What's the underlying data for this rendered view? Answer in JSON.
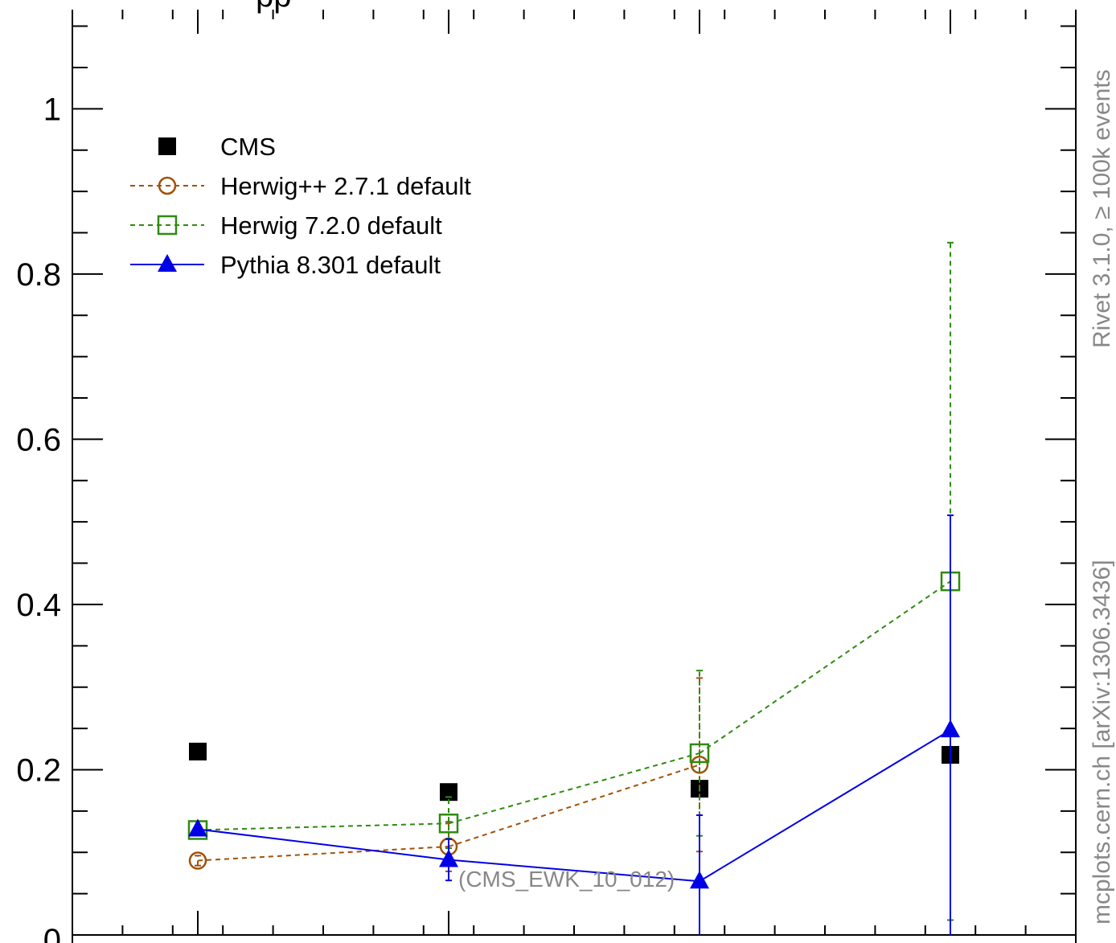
{
  "chart_data": {
    "type": "scatter",
    "title": "",
    "xlabel": "",
    "ylabel": "",
    "ylim": [
      0,
      1.12
    ],
    "xlim": [
      0.5,
      4.5
    ],
    "x": [
      1,
      2,
      3,
      4
    ],
    "y_ticks": [
      {
        "value": 0.2,
        "label": "0.2"
      },
      {
        "value": 0.4,
        "label": "0.4"
      },
      {
        "value": 0.6,
        "label": "0.6"
      },
      {
        "value": 0.8,
        "label": "0.8"
      },
      {
        "value": 1.0,
        "label": "1"
      }
    ],
    "bottom_tick_fragment": "0",
    "series": [
      {
        "name": "CMS",
        "color": "#000000",
        "marker": "filled-square",
        "line": "none",
        "values": [
          0.222,
          0.173,
          0.177,
          0.218
        ],
        "err_low": [
          0,
          0,
          0,
          0
        ],
        "err_high": [
          0,
          0,
          0,
          0
        ]
      },
      {
        "name": "Herwig++ 2.7.1 default",
        "color": "#a0520a",
        "marker": "open-circle",
        "line": "dashed",
        "values": [
          0.09,
          0.107,
          0.206,
          null
        ],
        "err_low": [
          0.006,
          0.03,
          0.105,
          0
        ],
        "err_high": [
          0.006,
          0.03,
          0.105,
          0
        ]
      },
      {
        "name": "Herwig 7.2.0 default",
        "color": "#2e8b10",
        "marker": "open-square",
        "line": "dashed",
        "values": [
          0.127,
          0.135,
          0.22,
          0.428
        ],
        "err_low": [
          0.006,
          0.03,
          0.1,
          0.41
        ],
        "err_high": [
          0.006,
          0.032,
          0.1,
          0.41
        ]
      },
      {
        "name": "Pythia 8.301 default",
        "color": "#0000e6",
        "marker": "filled-triangle",
        "line": "solid",
        "values": [
          0.128,
          0.091,
          0.065,
          0.248
        ],
        "err_low": [
          0.004,
          0.025,
          0.08,
          0.26
        ],
        "err_high": [
          0.004,
          0.025,
          0.08,
          0.26
        ]
      }
    ],
    "legend_position": "top-left",
    "grid": false
  },
  "annotations": {
    "title_fragment": "pp",
    "analysis_id": "(CMS_EWK_10_012)",
    "side_label_top": "Rivet 3.1.0, ≥ 100k events",
    "side_label_bottom": "mcplots.cern.ch [arXiv:1306.3436]",
    "annotation_color": "#888888"
  }
}
